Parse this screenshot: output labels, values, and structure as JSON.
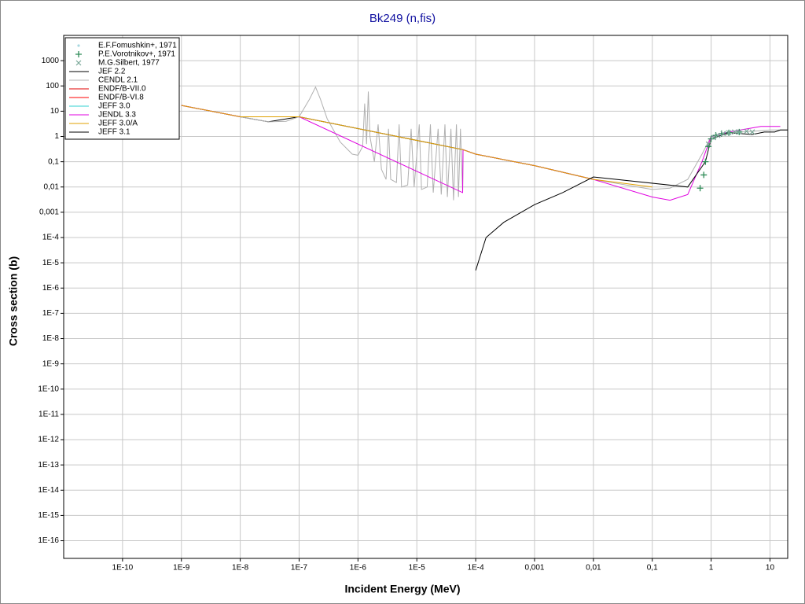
{
  "chart_data": {
    "type": "line",
    "title": "Bk249 (n,fis)",
    "x_label": "Incident Energy (MeV)",
    "y_label": "Cross section (b)",
    "x_log": true,
    "y_log": true,
    "grid": true,
    "legend": "upper left",
    "xlim": [
      1e-11,
      20
    ],
    "ylim": [
      2e-17,
      10000
    ],
    "xticks": [
      {
        "value": 1e-10,
        "label": "1E-10"
      },
      {
        "value": 1e-09,
        "label": "1E-9"
      },
      {
        "value": 1e-08,
        "label": "1E-8"
      },
      {
        "value": 1e-07,
        "label": "1E-7"
      },
      {
        "value": 1e-06,
        "label": "1E-6"
      },
      {
        "value": 1e-05,
        "label": "1E-5"
      },
      {
        "value": 0.0001,
        "label": "1E-4"
      },
      {
        "value": 0.001,
        "label": "0,001"
      },
      {
        "value": 0.01,
        "label": "0,01"
      },
      {
        "value": 0.1,
        "label": "0,1"
      },
      1,
      10
    ],
    "yticks": [
      1000,
      100,
      10,
      1,
      {
        "value": 0.1,
        "label": "0,1"
      },
      {
        "value": 0.01,
        "label": "0,01"
      },
      {
        "value": 0.001,
        "label": "0,001"
      },
      {
        "value": 0.0001,
        "label": "1E-4"
      },
      {
        "value": 1e-05,
        "label": "1E-5"
      },
      {
        "value": 1e-06,
        "label": "1E-6"
      },
      {
        "value": 1e-07,
        "label": "1E-7"
      },
      {
        "value": 1e-08,
        "label": "1E-8"
      },
      {
        "value": 1e-09,
        "label": "1E-9"
      },
      {
        "value": 1e-10,
        "label": "1E-10"
      },
      {
        "value": 1e-11,
        "label": "1E-11"
      },
      {
        "value": 1e-12,
        "label": "1E-12"
      },
      {
        "value": 1e-13,
        "label": "1E-13"
      },
      {
        "value": 1e-14,
        "label": "1E-14"
      },
      {
        "value": 1e-15,
        "label": "1E-15"
      },
      {
        "value": 1e-16,
        "label": "1E-16"
      }
    ],
    "series": [
      {
        "name": "E.F.Fomushkin+, 1971",
        "type": "scatter",
        "marker": "dot",
        "color": "#a8d8e0",
        "x": [
          1.5,
          2,
          3
        ],
        "values": [
          1.2,
          1.3,
          1.4
        ]
      },
      {
        "name": "P.E.Vorotnikov+, 1971",
        "type": "scatter",
        "marker": "plus",
        "color": "#2e8b57",
        "x": [
          0.65,
          0.75,
          0.8,
          0.9,
          1,
          1.2,
          1.5,
          2,
          3
        ],
        "values": [
          0.009,
          0.03,
          0.1,
          0.4,
          0.8,
          1.1,
          1.3,
          1.4,
          1.5
        ]
      },
      {
        "name": "M.G.Silbert, 1977",
        "type": "scatter",
        "marker": "cross",
        "color": "#7aa898",
        "x": [
          0.9,
          1.1,
          1.3,
          1.6,
          2,
          2.5,
          3,
          4,
          5
        ],
        "values": [
          0.5,
          0.9,
          1.1,
          1.3,
          1.4,
          1.5,
          1.5,
          1.6,
          1.5
        ]
      },
      {
        "name": "JEF 2.2",
        "type": "line",
        "color": "#000000",
        "x": [
          1e-09,
          1e-08,
          3e-08,
          1e-07,
          6.1e-05,
          0.0001,
          0.001,
          0.01
        ],
        "values": [
          17,
          6,
          3.8,
          6,
          0.3,
          0.2,
          0.07,
          0.02
        ]
      },
      {
        "name": "CENDL 2.1",
        "type": "line",
        "color": "#b0b0b0",
        "x": [
          1e-09,
          1e-08,
          3e-08,
          6e-08,
          1e-07,
          1.5e-07,
          1.9e-07,
          2.3e-07,
          3e-07,
          5e-07,
          8e-07,
          1e-06,
          1.2e-06,
          1.3e-06,
          1.4e-06,
          1.5e-06,
          1.6e-06,
          1.9e-06,
          2.2e-06,
          2.5e-06,
          3e-06,
          3.3e-06,
          3.6e-06,
          4.5e-06,
          5e-06,
          5.5e-06,
          7e-06,
          8e-06,
          9e-06,
          1.1e-05,
          1.2e-05,
          1.5e-05,
          1.7e-05,
          1.9e-05,
          2.3e-05,
          2.6e-05,
          3e-05,
          3.3e-05,
          3.8e-05,
          4.2e-05,
          4.7e-05,
          5.1e-05,
          5.5e-05,
          6e-05,
          6.1e-05,
          0.0001,
          0.001,
          0.01,
          0.1,
          0.2,
          0.4,
          0.7,
          1,
          2,
          5,
          10,
          20
        ],
        "values": [
          17,
          6,
          3.8,
          4,
          6,
          30,
          90,
          30,
          5,
          0.6,
          0.2,
          0.18,
          0.4,
          20,
          0.5,
          60,
          1,
          0.1,
          3,
          0.05,
          0.02,
          2,
          0.02,
          0.015,
          3,
          0.01,
          0.012,
          2,
          0.01,
          3,
          0.008,
          0.01,
          3,
          0.006,
          2,
          0.005,
          3,
          0.004,
          2,
          0.003,
          3,
          0.004,
          2,
          0.006,
          0.3,
          0.2,
          0.07,
          0.02,
          0.008,
          0.009,
          0.02,
          0.2,
          1,
          1.4,
          1.6,
          1.8,
          1.8
        ]
      },
      {
        "name": "ENDF/B-VII.0",
        "type": "line",
        "color": "#e00000",
        "x": [
          1e-09,
          1e-08,
          1e-07,
          6.1e-05,
          0.0001,
          0.001,
          0.01
        ],
        "values": [
          17,
          6,
          6,
          0.3,
          0.2,
          0.07,
          0.02
        ]
      },
      {
        "name": "ENDF/B-VI.8",
        "type": "line",
        "color": "#ff0000",
        "x": [
          1e-09,
          1e-08,
          1e-07,
          6.1e-05,
          0.0001,
          0.001,
          0.01
        ],
        "values": [
          17,
          6,
          6,
          0.3,
          0.2,
          0.07,
          0.02
        ]
      },
      {
        "name": "JEFF 3.0",
        "type": "line",
        "color": "#30d0d0",
        "x": [
          1e-09,
          1e-08,
          1e-07,
          6.1e-05,
          0.0001,
          0.001,
          0.01
        ],
        "values": [
          17,
          6,
          6,
          0.3,
          0.2,
          0.07,
          0.02
        ]
      },
      {
        "name": "JENDL 3.3",
        "type": "line",
        "color": "#e000e0",
        "x": [
          1e-09,
          1e-08,
          1e-07,
          6e-05,
          6.1e-05,
          0.0001,
          0.001,
          0.01,
          0.1,
          0.2,
          0.4,
          0.7,
          1,
          2,
          7,
          15
        ],
        "values": [
          17,
          6,
          6,
          0.006,
          0.3,
          0.2,
          0.07,
          0.02,
          0.004,
          0.003,
          0.005,
          0.1,
          1,
          1.5,
          2.5,
          2.5
        ]
      },
      {
        "name": "JEFF 3.0/A",
        "type": "line",
        "color": "#e0a000",
        "x": [
          1e-09,
          1e-08,
          1e-07,
          6.1e-05,
          0.0001,
          0.001,
          0.01,
          0.1
        ],
        "values": [
          17,
          6,
          6,
          0.3,
          0.2,
          0.07,
          0.02,
          0.01
        ]
      },
      {
        "name": "JEFF 3.1",
        "type": "line",
        "color": "#000000",
        "x": [
          0.0001,
          0.00015,
          0.0003,
          0.001,
          0.003,
          0.01,
          0.4,
          0.8,
          1,
          2,
          5,
          8,
          12,
          15,
          20
        ],
        "values": [
          5e-06,
          0.0001,
          0.0004,
          0.002,
          0.006,
          0.025,
          0.01,
          0.1,
          0.8,
          1.4,
          1.2,
          1.5,
          1.5,
          1.8,
          1.8
        ]
      }
    ]
  }
}
